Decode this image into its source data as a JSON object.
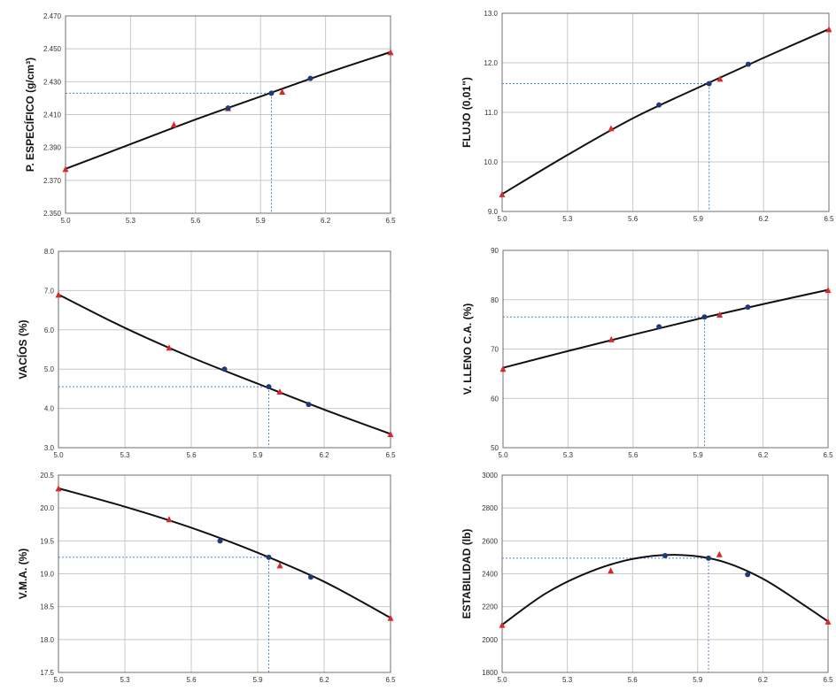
{
  "colors": {
    "grid": "#c8c8c8",
    "frame": "#6f6f6f",
    "curve": "#111111",
    "triangle": "#d62a2a",
    "dot": "#1e3a78",
    "guide": "#4c86c9"
  },
  "chart_data": [
    {
      "type": "scatter",
      "ylabel": "P. ESPECÍFICO (g/cm³)",
      "xlim": [
        5.0,
        6.5
      ],
      "xticks": [
        "5.0",
        "5.3",
        "5.6",
        "5.9",
        "6.2",
        "6.5"
      ],
      "ylim": [
        2.35,
        2.47
      ],
      "yticks": [
        "2.350",
        "2.370",
        "2.390",
        "2.410",
        "2.430",
        "2.450",
        "2.470"
      ],
      "grid": true,
      "series": [
        {
          "marker": "triangle",
          "x": [
            5.0,
            5.5,
            5.75,
            6.0,
            6.5
          ],
          "y": [
            2.377,
            2.404,
            2.414,
            2.424,
            2.448
          ]
        },
        {
          "marker": "dot",
          "x": [
            5.75,
            5.95,
            6.13
          ],
          "y": [
            2.414,
            2.423,
            2.432
          ]
        }
      ],
      "curve": {
        "kind": "fit",
        "x": [
          5.0,
          5.3,
          5.6,
          5.9,
          6.2,
          6.5
        ],
        "y": [
          2.377,
          2.392,
          2.407,
          2.421,
          2.435,
          2.448
        ]
      },
      "guide": {
        "x": 5.95,
        "y": 2.423
      }
    },
    {
      "type": "scatter",
      "ylabel": "FLUJO (0,01\")",
      "xlim": [
        5.0,
        6.5
      ],
      "xticks": [
        "5.0",
        "5.3",
        "5.6",
        "5.9",
        "6.2",
        "6.5"
      ],
      "ylim": [
        9.0,
        13.0
      ],
      "yticks": [
        "9.0",
        "10.0",
        "11.0",
        "12.0",
        "13.0"
      ],
      "grid": true,
      "series": [
        {
          "marker": "triangle",
          "x": [
            5.0,
            5.5,
            6.0,
            6.5
          ],
          "y": [
            9.35,
            10.68,
            11.68,
            12.68
          ]
        },
        {
          "marker": "dot",
          "x": [
            5.72,
            5.95,
            6.13
          ],
          "y": [
            11.15,
            11.58,
            11.97
          ]
        }
      ],
      "curve": {
        "kind": "fit",
        "x": [
          5.0,
          5.3,
          5.6,
          5.9,
          6.2,
          6.5
        ],
        "y": [
          9.35,
          10.14,
          10.88,
          11.5,
          12.1,
          12.68
        ]
      },
      "guide": {
        "x": 5.95,
        "y": 11.58
      }
    },
    {
      "type": "scatter",
      "ylabel": "VACÍOS (%)",
      "xlim": [
        5.0,
        6.5
      ],
      "xticks": [
        "5.0",
        "5.3",
        "5.6",
        "5.9",
        "6.2",
        "6.5"
      ],
      "ylim": [
        3.0,
        8.0
      ],
      "yticks": [
        "3.0",
        "4.0",
        "5.0",
        "6.0",
        "7.0",
        "8.0"
      ],
      "grid": true,
      "series": [
        {
          "marker": "triangle",
          "x": [
            5.0,
            5.5,
            6.0,
            6.5
          ],
          "y": [
            6.9,
            5.55,
            4.43,
            3.35
          ]
        },
        {
          "marker": "dot",
          "x": [
            5.75,
            5.95,
            6.13
          ],
          "y": [
            5.0,
            4.55,
            4.1
          ]
        }
      ],
      "curve": {
        "kind": "fit",
        "x": [
          5.0,
          5.3,
          5.6,
          5.9,
          6.2,
          6.5
        ],
        "y": [
          6.9,
          6.05,
          5.3,
          4.63,
          3.97,
          3.35
        ]
      },
      "guide": {
        "x": 5.95,
        "y": 4.55
      }
    },
    {
      "type": "scatter",
      "ylabel": "V. LLENO C.A. (%)",
      "xlim": [
        5.0,
        6.5
      ],
      "xticks": [
        "5.0",
        "5.3",
        "5.6",
        "5.9",
        "6.2",
        "6.5"
      ],
      "ylim": [
        50,
        90
      ],
      "yticks": [
        "50",
        "60",
        "70",
        "80",
        "90"
      ],
      "grid": true,
      "series": [
        {
          "marker": "triangle",
          "x": [
            5.0,
            5.5,
            6.0,
            6.5
          ],
          "y": [
            66,
            72,
            77,
            82
          ]
        },
        {
          "marker": "dot",
          "x": [
            5.72,
            5.93,
            6.13
          ],
          "y": [
            74.5,
            76.5,
            78.5
          ]
        }
      ],
      "curve": {
        "kind": "fit",
        "x": [
          5.0,
          5.3,
          5.6,
          5.9,
          6.2,
          6.5
        ],
        "y": [
          66.2,
          69.6,
          72.9,
          76.1,
          79.1,
          82.0
        ]
      },
      "guide": {
        "x": 5.93,
        "y": 76.5
      }
    },
    {
      "type": "scatter",
      "ylabel": "V.M.A. (%)",
      "xlim": [
        5.0,
        6.5
      ],
      "xticks": [
        "5.0",
        "5.3",
        "5.6",
        "5.9",
        "6.2",
        "6.5"
      ],
      "ylim": [
        17.5,
        20.5
      ],
      "yticks": [
        "17.5",
        "18.0",
        "18.5",
        "19.0",
        "19.5",
        "20.0",
        "20.5"
      ],
      "grid": true,
      "series": [
        {
          "marker": "triangle",
          "x": [
            5.0,
            5.5,
            6.0,
            6.5
          ],
          "y": [
            20.3,
            19.83,
            19.13,
            18.33
          ]
        },
        {
          "marker": "dot",
          "x": [
            5.73,
            5.95,
            6.14
          ],
          "y": [
            19.5,
            19.25,
            18.95
          ]
        }
      ],
      "curve": {
        "kind": "fit",
        "x": [
          5.0,
          5.3,
          5.6,
          5.9,
          6.2,
          6.5
        ],
        "y": [
          20.3,
          20.02,
          19.7,
          19.32,
          18.88,
          18.33
        ]
      },
      "guide": {
        "x": 5.95,
        "y": 19.25
      }
    },
    {
      "type": "scatter",
      "ylabel": "ESTABILIDAD (lb)",
      "xlim": [
        5.0,
        6.5
      ],
      "xticks": [
        "5.0",
        "5.3",
        "5.6",
        "5.9",
        "6.2",
        "6.5"
      ],
      "ylim": [
        1800,
        3000
      ],
      "yticks": [
        "1800",
        "2000",
        "2200",
        "2400",
        "2600",
        "2800",
        "3000"
      ],
      "grid": true,
      "series": [
        {
          "marker": "triangle",
          "x": [
            5.0,
            5.5,
            6.0,
            6.5
          ],
          "y": [
            2090,
            2420,
            2520,
            2110
          ]
        },
        {
          "marker": "dot",
          "x": [
            5.75,
            5.95,
            6.13
          ],
          "y": [
            2510,
            2495,
            2395
          ]
        }
      ],
      "curve": {
        "kind": "fit",
        "x": [
          5.0,
          5.2,
          5.4,
          5.6,
          5.8,
          6.0,
          6.2,
          6.4,
          6.5
        ],
        "y": [
          2090,
          2280,
          2410,
          2490,
          2515,
          2480,
          2370,
          2200,
          2110
        ]
      },
      "guide": {
        "x": 5.95,
        "y": 2495
      }
    }
  ]
}
